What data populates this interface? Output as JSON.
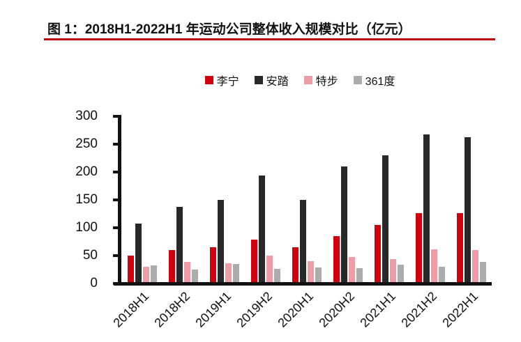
{
  "figure": {
    "title": "图 1：2018H1-2022H1 年运动公司整体收入规模对比（亿元）",
    "accent_underline_color": "#C00000"
  },
  "chart_data": {
    "type": "bar",
    "title": "图 1：2018H1-2022H1 年运动公司整体收入规模对比（亿元）",
    "unit": "亿元",
    "categories": [
      "2018H1",
      "2018H2",
      "2019H1",
      "2019H2",
      "2020H1",
      "2020H2",
      "2021H1",
      "2021H2",
      "2022H1"
    ],
    "series": [
      {
        "id": "li-ning",
        "name": "李宁",
        "color": "#D0000F",
        "values": [
          47,
          58,
          63,
          76,
          62,
          83,
          102,
          124,
          124
        ]
      },
      {
        "id": "anta",
        "name": "安踏",
        "color": "#282828",
        "values": [
          105,
          135,
          148,
          191,
          147,
          208,
          228,
          265,
          260
        ]
      },
      {
        "id": "xtep",
        "name": "特步",
        "color": "#EE9CA6",
        "values": [
          27,
          36,
          34,
          48,
          37,
          45,
          41,
          59,
          57
        ]
      },
      {
        "id": "361-degrees",
        "name": "361度",
        "color": "#ACACAC",
        "values": [
          30,
          22,
          32,
          24,
          26,
          25,
          31,
          28,
          36
        ]
      }
    ],
    "ylim": [
      0,
      300
    ],
    "yticks": [
      0,
      50,
      100,
      150,
      200,
      250,
      300
    ],
    "grid": false,
    "legend_position": "top",
    "axis_color": "#111111"
  }
}
